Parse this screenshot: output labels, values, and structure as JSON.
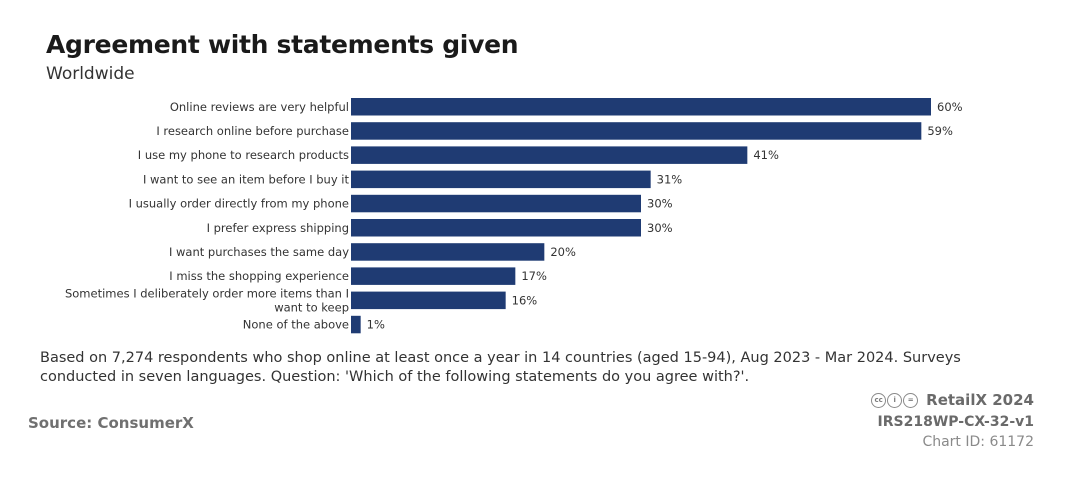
{
  "header": {
    "title": "Agreement with statements given",
    "subtitle": "Worldwide"
  },
  "chart_data": {
    "type": "bar",
    "orientation": "horizontal",
    "categories": [
      "Online reviews are very helpful",
      "I research online before purchase",
      "I use my phone to research products",
      "I want to see an item before I buy it",
      "I usually order directly from my phone",
      "I prefer express shipping",
      "I want purchases the same day",
      "I miss the shopping experience",
      "Sometimes I deliberately order more items than I want to keep",
      "None of the above"
    ],
    "values": [
      60,
      59,
      41,
      31,
      30,
      30,
      20,
      17,
      16,
      1
    ],
    "value_labels": [
      "60%",
      "59%",
      "41%",
      "31%",
      "30%",
      "30%",
      "20%",
      "17%",
      "16%",
      "1%"
    ],
    "unit": "%",
    "xlim": [
      0,
      60
    ],
    "grid": false,
    "bar_color": "#1f3b73"
  },
  "footer": {
    "note": "Based on 7,274 respondents who shop online at least once a year in 14 countries (aged 15-94), Aug 2023 - Mar 2024. Surveys conducted in seven languages. Question: 'Which of the following statements do you agree with?'.",
    "source": "Source: ConsumerX",
    "brand": "RetailX 2024",
    "chart_code": "IRS218WP-CX-32-v1",
    "chart_id": "Chart ID: 61172",
    "license_icons": [
      "cc-icon",
      "by-icon",
      "nd-icon"
    ]
  }
}
